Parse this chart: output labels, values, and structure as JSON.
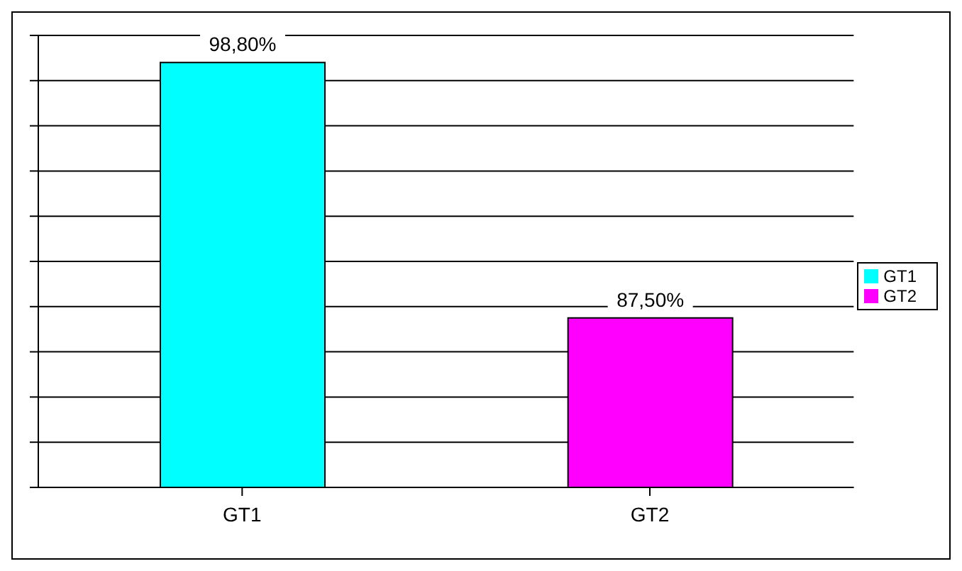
{
  "chart_data": {
    "type": "bar",
    "categories": [
      "GT1",
      "GT2"
    ],
    "series": [
      {
        "name": "GT1",
        "color": "#00ffff",
        "values": [
          98.8,
          null
        ],
        "value_labels": [
          "98,80%",
          null
        ]
      },
      {
        "name": "GT2",
        "color": "#ff00ff",
        "values": [
          null,
          87.5
        ],
        "value_labels": [
          null,
          "87,50%"
        ]
      }
    ],
    "stacked": true,
    "ylim": [
      80,
      100
    ],
    "tick_labels": "x",
    "grid": "y",
    "legend": "right"
  }
}
